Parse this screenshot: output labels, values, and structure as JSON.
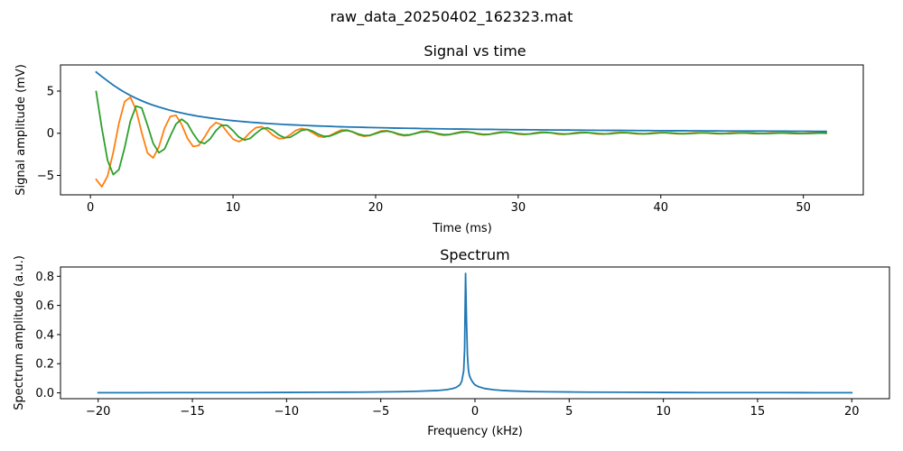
{
  "figure": {
    "suptitle": "raw_data_20250402_162323.mat"
  },
  "chart_data": [
    {
      "type": "line",
      "title": "Signal vs time",
      "xlabel": "Time (ms)",
      "ylabel": "Signal amplitude (mV)",
      "xlim": [
        -2.1,
        54.2
      ],
      "ylim": [
        -7.3,
        8.1
      ],
      "xticks": [
        0,
        10,
        20,
        30,
        40,
        50
      ],
      "yticks": [
        -5,
        0,
        5
      ],
      "grid": false,
      "colors": [
        "#1f77b4",
        "#ff7f0e",
        "#2ca02c"
      ],
      "x": [
        0.4,
        0.8,
        1.2,
        1.6,
        2.0,
        2.4,
        2.8,
        3.2,
        3.6,
        4.0,
        4.4,
        4.8,
        5.2,
        5.6,
        6.0,
        6.4,
        6.8,
        7.2,
        7.6,
        8.0,
        8.4,
        8.8,
        9.2,
        9.6,
        10.0,
        10.4,
        10.8,
        11.2,
        11.6,
        12.0,
        12.4,
        12.8,
        13.2,
        13.6,
        14.0,
        14.4,
        14.8,
        15.2,
        15.6,
        16.0,
        16.4,
        16.8,
        17.2,
        17.6,
        18.0,
        18.4,
        18.8,
        19.2,
        19.6,
        20.0,
        20.4,
        20.8,
        21.2,
        21.6,
        22.0,
        22.4,
        22.8,
        23.2,
        23.6,
        24.0,
        24.4,
        24.8,
        25.2,
        25.6,
        26.0,
        26.4,
        26.8,
        27.2,
        27.6,
        28.0,
        28.4,
        28.8,
        29.2,
        29.6,
        30.0,
        30.4,
        30.8,
        31.2,
        31.6,
        32.0,
        32.4,
        32.8,
        33.2,
        33.6,
        34.0,
        34.4,
        34.8,
        35.2,
        35.6,
        36.0,
        36.4,
        36.8,
        37.2,
        37.6,
        38.0,
        38.4,
        38.8,
        39.2,
        39.6,
        40.0,
        40.4,
        40.8,
        41.2,
        41.6,
        42.0,
        42.4,
        42.8,
        43.2,
        43.6,
        44.0,
        44.4,
        44.8,
        45.2,
        45.6,
        46.0,
        46.4,
        46.8,
        47.2,
        47.6,
        48.0,
        48.4,
        48.8,
        49.2,
        49.6,
        50.0,
        50.4,
        50.8,
        51.2,
        51.6
      ],
      "series": [
        {
          "values": [
            7.26,
            6.72,
            6.21,
            5.71,
            5.26,
            4.85,
            4.48,
            4.15,
            3.85,
            3.57,
            3.33,
            3.11,
            2.91,
            2.72,
            2.55,
            2.4,
            2.26,
            2.13,
            2.01,
            1.91,
            1.81,
            1.72,
            1.64,
            1.56,
            1.49,
            1.43,
            1.37,
            1.31,
            1.26,
            1.21,
            1.16,
            1.12,
            1.08,
            1.04,
            1.01,
            0.98,
            0.95,
            0.92,
            0.89,
            0.86,
            0.84,
            0.82,
            0.79,
            0.77,
            0.75,
            0.73,
            0.72,
            0.7,
            0.68,
            0.67,
            0.65,
            0.64,
            0.62,
            0.61,
            0.6,
            0.59,
            0.58,
            0.56,
            0.55,
            0.54,
            0.53,
            0.52,
            0.51,
            0.5,
            0.5,
            0.49,
            0.48,
            0.47,
            0.46,
            0.46,
            0.45,
            0.44,
            0.44,
            0.43,
            0.42,
            0.42,
            0.41,
            0.41,
            0.4,
            0.4,
            0.39,
            0.39,
            0.38,
            0.38,
            0.37,
            0.37,
            0.36,
            0.36,
            0.35,
            0.35,
            0.34,
            0.34,
            0.34,
            0.33,
            0.33,
            0.32,
            0.32,
            0.32,
            0.31,
            0.31,
            0.31,
            0.3,
            0.3,
            0.3,
            0.29,
            0.29,
            0.29,
            0.28,
            0.28,
            0.28,
            0.27,
            0.27,
            0.27,
            0.27,
            0.26,
            0.26,
            0.26,
            0.26,
            0.25,
            0.25,
            0.25,
            0.25,
            0.24,
            0.24,
            0.24,
            0.24,
            0.23,
            0.23,
            0.23
          ]
        },
        {
          "values": [
            -5.47,
            -6.34,
            -5.09,
            -2.26,
            1.2,
            3.75,
            4.28,
            2.78,
            0.05,
            -2.33,
            -2.92,
            -1.62,
            0.61,
            1.99,
            2.13,
            1.03,
            -0.59,
            -1.57,
            -1.45,
            -0.46,
            0.66,
            1.27,
            1.01,
            0.13,
            -0.69,
            -1.0,
            -0.62,
            0.11,
            0.66,
            0.78,
            0.38,
            -0.22,
            -0.62,
            -0.6,
            -0.18,
            0.33,
            0.56,
            0.43,
            0.04,
            -0.37,
            -0.47,
            -0.27,
            0.09,
            0.39,
            0.39,
            0.14,
            -0.2,
            -0.36,
            -0.27,
            0.02,
            0.28,
            0.31,
            0.12,
            -0.16,
            -0.29,
            -0.22,
            0.0,
            0.22,
            0.26,
            0.09,
            -0.13,
            -0.24,
            -0.17,
            0.02,
            0.19,
            0.2,
            0.06,
            -0.12,
            -0.19,
            -0.13,
            0.04,
            0.16,
            0.16,
            0.03,
            -0.11,
            -0.15,
            -0.09,
            0.05,
            0.14,
            0.12,
            0.01,
            -0.1,
            -0.13,
            -0.06,
            0.06,
            0.12,
            0.09,
            -0.01,
            -0.09,
            -0.1,
            -0.03,
            0.06,
            0.1,
            0.07,
            -0.02,
            -0.08,
            -0.08,
            -0.01,
            0.07,
            0.08,
            0.05,
            -0.03,
            -0.07,
            -0.06,
            0.01,
            0.06,
            0.07,
            0.03,
            -0.03,
            -0.06,
            -0.05,
            0.02,
            0.06,
            0.05,
            0.02,
            -0.04,
            -0.05,
            -0.03,
            0.02,
            0.05,
            0.04,
            0.0,
            -0.04,
            -0.05,
            -0.02,
            0.03,
            0.04,
            0.03,
            -0.01
          ]
        },
        {
          "values": [
            4.95,
            0.6,
            -3.2,
            -4.9,
            -4.3,
            -1.7,
            1.43,
            3.22,
            2.99,
            0.96,
            -1.2,
            -2.31,
            -1.86,
            -0.34,
            1.09,
            1.68,
            1.15,
            -0.03,
            -0.99,
            -1.22,
            -0.66,
            0.3,
            0.96,
            0.93,
            0.3,
            -0.44,
            -0.8,
            -0.61,
            -0.02,
            0.51,
            0.66,
            0.34,
            -0.19,
            -0.52,
            -0.48,
            -0.08,
            0.34,
            0.46,
            0.24,
            -0.13,
            -0.37,
            -0.33,
            -0.06,
            0.24,
            0.33,
            0.17,
            -0.1,
            -0.27,
            -0.24,
            -0.04,
            0.18,
            0.25,
            0.13,
            -0.08,
            -0.21,
            -0.18,
            -0.03,
            0.14,
            0.19,
            0.1,
            -0.06,
            -0.16,
            -0.14,
            -0.02,
            0.11,
            0.15,
            0.08,
            -0.05,
            -0.13,
            -0.11,
            -0.01,
            0.09,
            0.12,
            0.06,
            -0.04,
            -0.1,
            -0.09,
            -0.01,
            0.07,
            0.1,
            0.05,
            -0.04,
            -0.09,
            -0.07,
            -0.01,
            0.06,
            0.08,
            0.04,
            -0.03,
            -0.07,
            -0.06,
            0.0,
            0.05,
            0.07,
            0.03,
            -0.03,
            -0.06,
            -0.05,
            0.0,
            0.05,
            0.06,
            0.03,
            -0.02,
            -0.05,
            -0.04,
            0.0,
            0.04,
            0.05,
            0.02,
            -0.02,
            -0.04,
            -0.04,
            0.0,
            0.03,
            0.04,
            0.02,
            -0.02,
            -0.04,
            -0.03,
            0.0,
            0.03,
            0.04,
            0.02,
            -0.01,
            -0.03,
            -0.03,
            0.0,
            0.03,
            0.03
          ]
        }
      ]
    },
    {
      "type": "line",
      "title": "Spectrum",
      "xlabel": "Frequency (kHz)",
      "ylabel": "Spectrum amplitude (a.u.)",
      "xlim": [
        -22,
        22
      ],
      "ylim": [
        -0.04,
        0.864
      ],
      "xticks": [
        -20,
        -15,
        -10,
        -5,
        0,
        5,
        10,
        15,
        20
      ],
      "yticks": [
        0.0,
        0.2,
        0.4,
        0.6,
        0.8
      ],
      "ytick_labels": [
        "0.0",
        "0.2",
        "0.4",
        "0.6",
        "0.8"
      ],
      "grid": false,
      "colors": [
        "#1f77b4"
      ],
      "x": [
        -20,
        -18,
        -16,
        -14,
        -12,
        -10,
        -8,
        -6,
        -4,
        -3,
        -2,
        -1.5,
        -1.2,
        -1.0,
        -0.8,
        -0.7,
        -0.6,
        -0.55,
        -0.5,
        -0.45,
        -0.4,
        -0.35,
        -0.3,
        -0.2,
        -0.1,
        0.0,
        0.2,
        0.5,
        1.0,
        1.5,
        2.0,
        3.0,
        4.0,
        5.0,
        6.0,
        8.0,
        10.0,
        12.0,
        14.0,
        16.0,
        18.0,
        20.0
      ],
      "series": [
        {
          "values": [
            0.001,
            0.001,
            0.002,
            0.002,
            0.002,
            0.003,
            0.004,
            0.005,
            0.008,
            0.011,
            0.016,
            0.022,
            0.029,
            0.037,
            0.055,
            0.08,
            0.15,
            0.3,
            0.82,
            0.5,
            0.26,
            0.16,
            0.12,
            0.09,
            0.07,
            0.055,
            0.042,
            0.03,
            0.021,
            0.016,
            0.013,
            0.009,
            0.007,
            0.006,
            0.005,
            0.004,
            0.003,
            0.002,
            0.002,
            0.002,
            0.001,
            0.001
          ]
        }
      ]
    }
  ]
}
